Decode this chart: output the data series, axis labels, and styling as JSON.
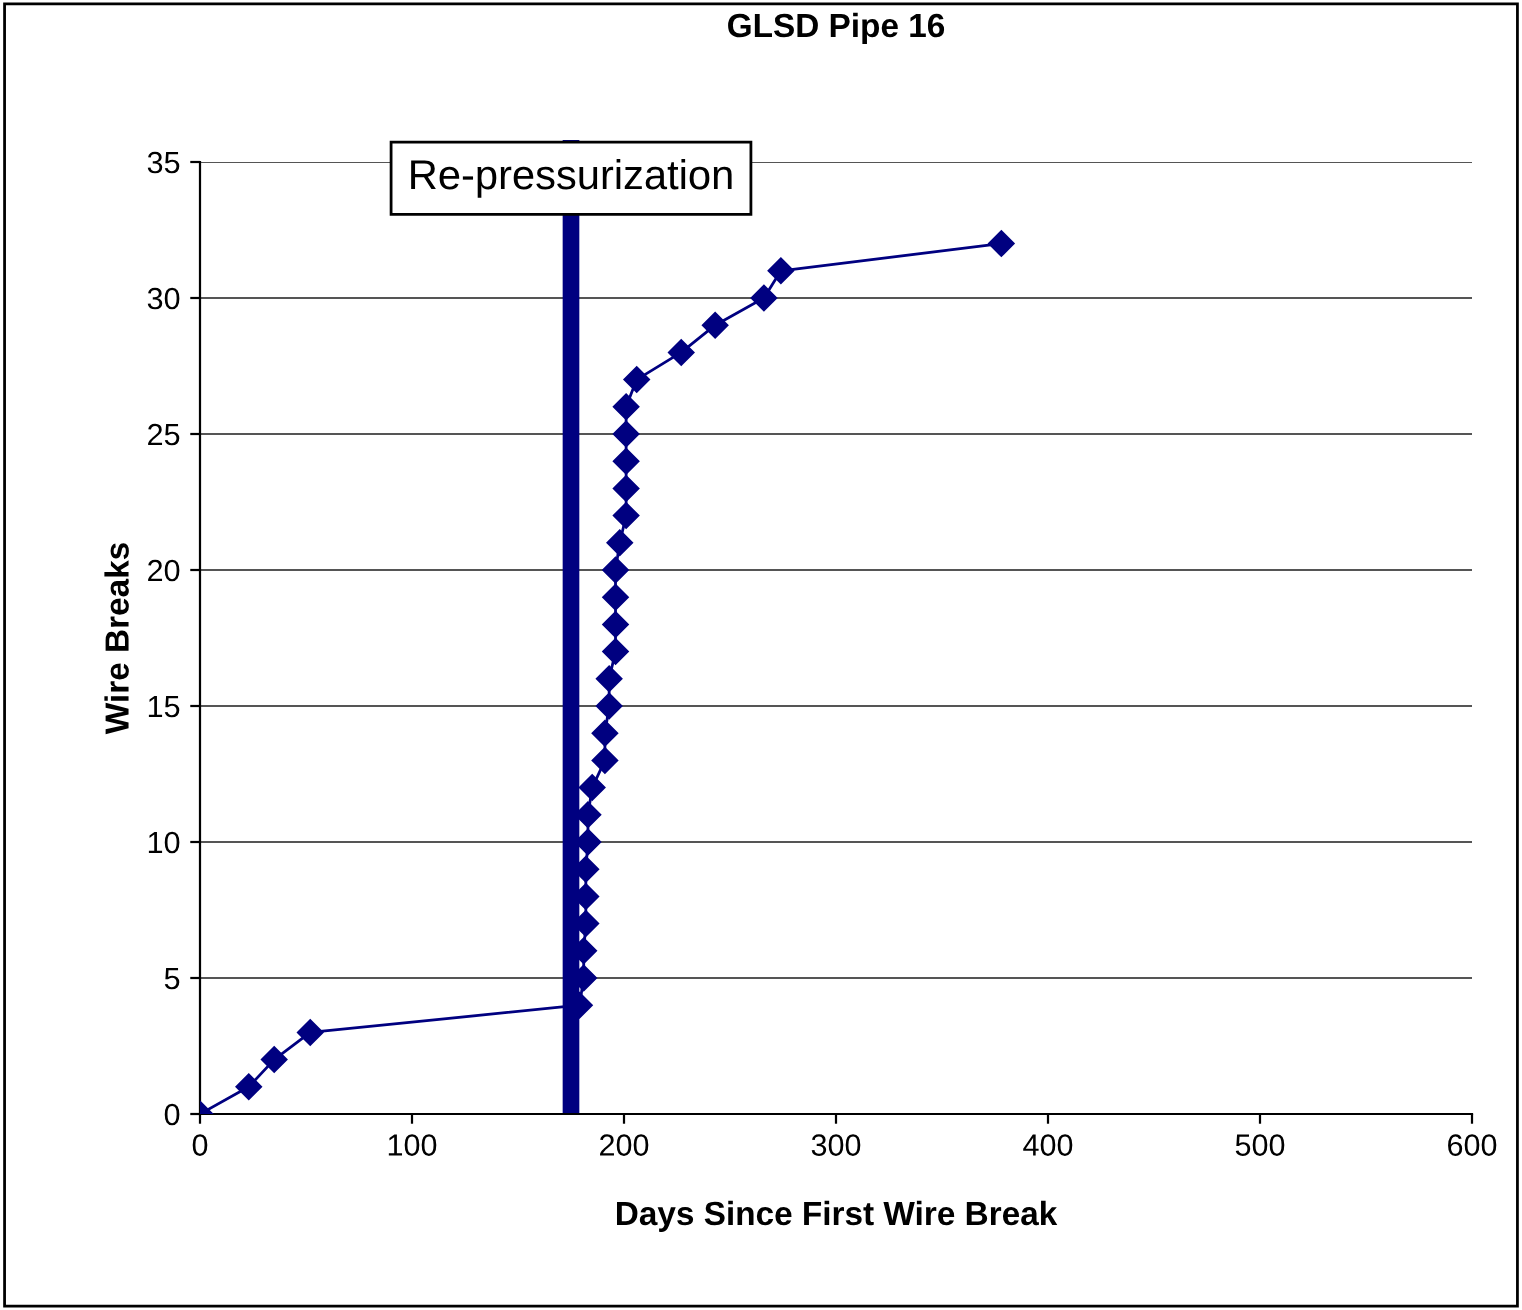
{
  "chart_data": {
    "type": "line",
    "title": "GLSD Pipe 16",
    "xlabel": "Days Since First Wire Break",
    "ylabel": "Wire Breaks",
    "x": [
      0,
      23,
      35,
      52,
      179,
      181,
      181,
      182,
      182,
      182,
      183,
      183,
      185,
      191,
      191,
      193,
      193,
      196,
      196,
      196,
      196,
      198,
      201,
      201,
      201,
      201,
      201,
      206,
      227,
      243,
      266,
      274,
      378
    ],
    "series": [
      {
        "color": "#000080",
        "values": [
          0,
          1,
          2,
          3,
          4,
          5,
          6,
          7,
          8,
          9,
          10,
          11,
          12,
          13,
          14,
          15,
          16,
          17,
          18,
          19,
          20,
          21,
          22,
          23,
          24,
          25,
          26,
          27,
          28,
          29,
          30,
          31,
          32
        ]
      }
    ],
    "xlim": [
      0,
      600
    ],
    "xticks": [
      0,
      100,
      200,
      300,
      400,
      500,
      600
    ],
    "ylim": [
      0,
      35
    ],
    "yticks": [
      0,
      5,
      10,
      15,
      20,
      25,
      30,
      35
    ],
    "grid": "y",
    "marker": "diamond",
    "line_style": "solid",
    "legend": false,
    "ref_lines": [
      {
        "axis": "x",
        "value": 175,
        "label": "Re-pressurization",
        "color": "#000080",
        "line_style": "solid"
      }
    ]
  }
}
